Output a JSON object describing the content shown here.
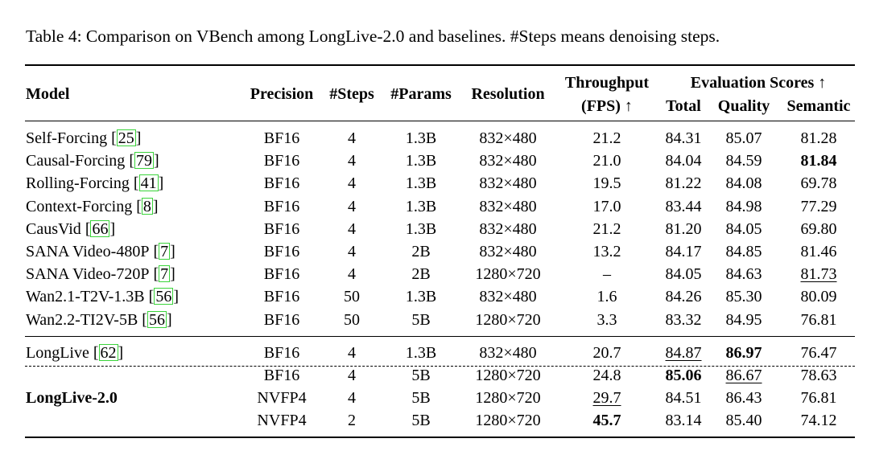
{
  "caption": "Table 4: Comparison on VBench among LongLive-2.0 and baselines. #Steps means denoising steps.",
  "headers": {
    "model": "Model",
    "precision": "Precision",
    "steps": "#Steps",
    "params": "#Params",
    "resolution": "Resolution",
    "throughput_line1": "Throughput",
    "throughput_line2": "(FPS) ↑",
    "eval_group": "Evaluation Scores ↑",
    "total": "Total",
    "quality": "Quality",
    "semantic": "Semantic"
  },
  "baseline_rows": [
    {
      "model": "Self-Forcing",
      "cite": "25",
      "precision": "BF16",
      "steps": "4",
      "params": "1.3B",
      "resolution": "832×480",
      "fps": "21.2",
      "total": "84.31",
      "quality": "85.07",
      "semantic": "81.28"
    },
    {
      "model": "Causal-Forcing",
      "cite": "79",
      "precision": "BF16",
      "steps": "4",
      "params": "1.3B",
      "resolution": "832×480",
      "fps": "21.0",
      "total": "84.04",
      "quality": "84.59",
      "semantic": "81.84",
      "semantic_style": "bold"
    },
    {
      "model": "Rolling-Forcing",
      "cite": "41",
      "precision": "BF16",
      "steps": "4",
      "params": "1.3B",
      "resolution": "832×480",
      "fps": "19.5",
      "total": "81.22",
      "quality": "84.08",
      "semantic": "69.78"
    },
    {
      "model": "Context-Forcing",
      "cite": "8",
      "precision": "BF16",
      "steps": "4",
      "params": "1.3B",
      "resolution": "832×480",
      "fps": "17.0",
      "total": "83.44",
      "quality": "84.98",
      "semantic": "77.29"
    },
    {
      "model": "CausVid",
      "cite": "66",
      "precision": "BF16",
      "steps": "4",
      "params": "1.3B",
      "resolution": "832×480",
      "fps": "21.2",
      "total": "81.20",
      "quality": "84.05",
      "semantic": "69.80"
    },
    {
      "model": "SANA Video-480P",
      "cite": "7",
      "precision": "BF16",
      "steps": "4",
      "params": "2B",
      "resolution": "832×480",
      "fps": "13.2",
      "total": "84.17",
      "quality": "84.85",
      "semantic": "81.46"
    },
    {
      "model": "SANA Video-720P",
      "cite": "7",
      "precision": "BF16",
      "steps": "4",
      "params": "2B",
      "resolution": "1280×720",
      "fps": "–",
      "total": "84.05",
      "quality": "84.63",
      "semantic": "81.73",
      "semantic_style": "underline"
    },
    {
      "model": "Wan2.1-T2V-1.3B",
      "cite": "56",
      "precision": "BF16",
      "steps": "50",
      "params": "1.3B",
      "resolution": "832×480",
      "fps": "1.6",
      "total": "84.26",
      "quality": "85.30",
      "semantic": "80.09"
    },
    {
      "model": "Wan2.2-TI2V-5B",
      "cite": "56",
      "precision": "BF16",
      "steps": "50",
      "params": "5B",
      "resolution": "1280×720",
      "fps": "3.3",
      "total": "83.32",
      "quality": "84.95",
      "semantic": "76.81"
    }
  ],
  "longlive_row": {
    "model": "LongLive",
    "cite": "62",
    "precision": "BF16",
    "steps": "4",
    "params": "1.3B",
    "resolution": "832×480",
    "fps": "20.7",
    "total": "84.87",
    "total_style": "underline",
    "quality": "86.97",
    "quality_style": "bold",
    "semantic": "76.47"
  },
  "longlive2": {
    "model": "LongLive-2.0",
    "rows": [
      {
        "precision": "BF16",
        "steps": "4",
        "params": "5B",
        "resolution": "1280×720",
        "fps": "24.8",
        "total": "85.06",
        "total_style": "bold",
        "quality": "86.67",
        "quality_style": "underline",
        "semantic": "78.63"
      },
      {
        "precision": "NVFP4",
        "steps": "4",
        "params": "5B",
        "resolution": "1280×720",
        "fps": "29.7",
        "fps_style": "underline",
        "total": "84.51",
        "quality": "86.43",
        "semantic": "76.81"
      },
      {
        "precision": "NVFP4",
        "steps": "2",
        "params": "5B",
        "resolution": "1280×720",
        "fps": "45.7",
        "fps_style": "bold",
        "total": "83.14",
        "quality": "85.40",
        "semantic": "74.12"
      }
    ]
  }
}
